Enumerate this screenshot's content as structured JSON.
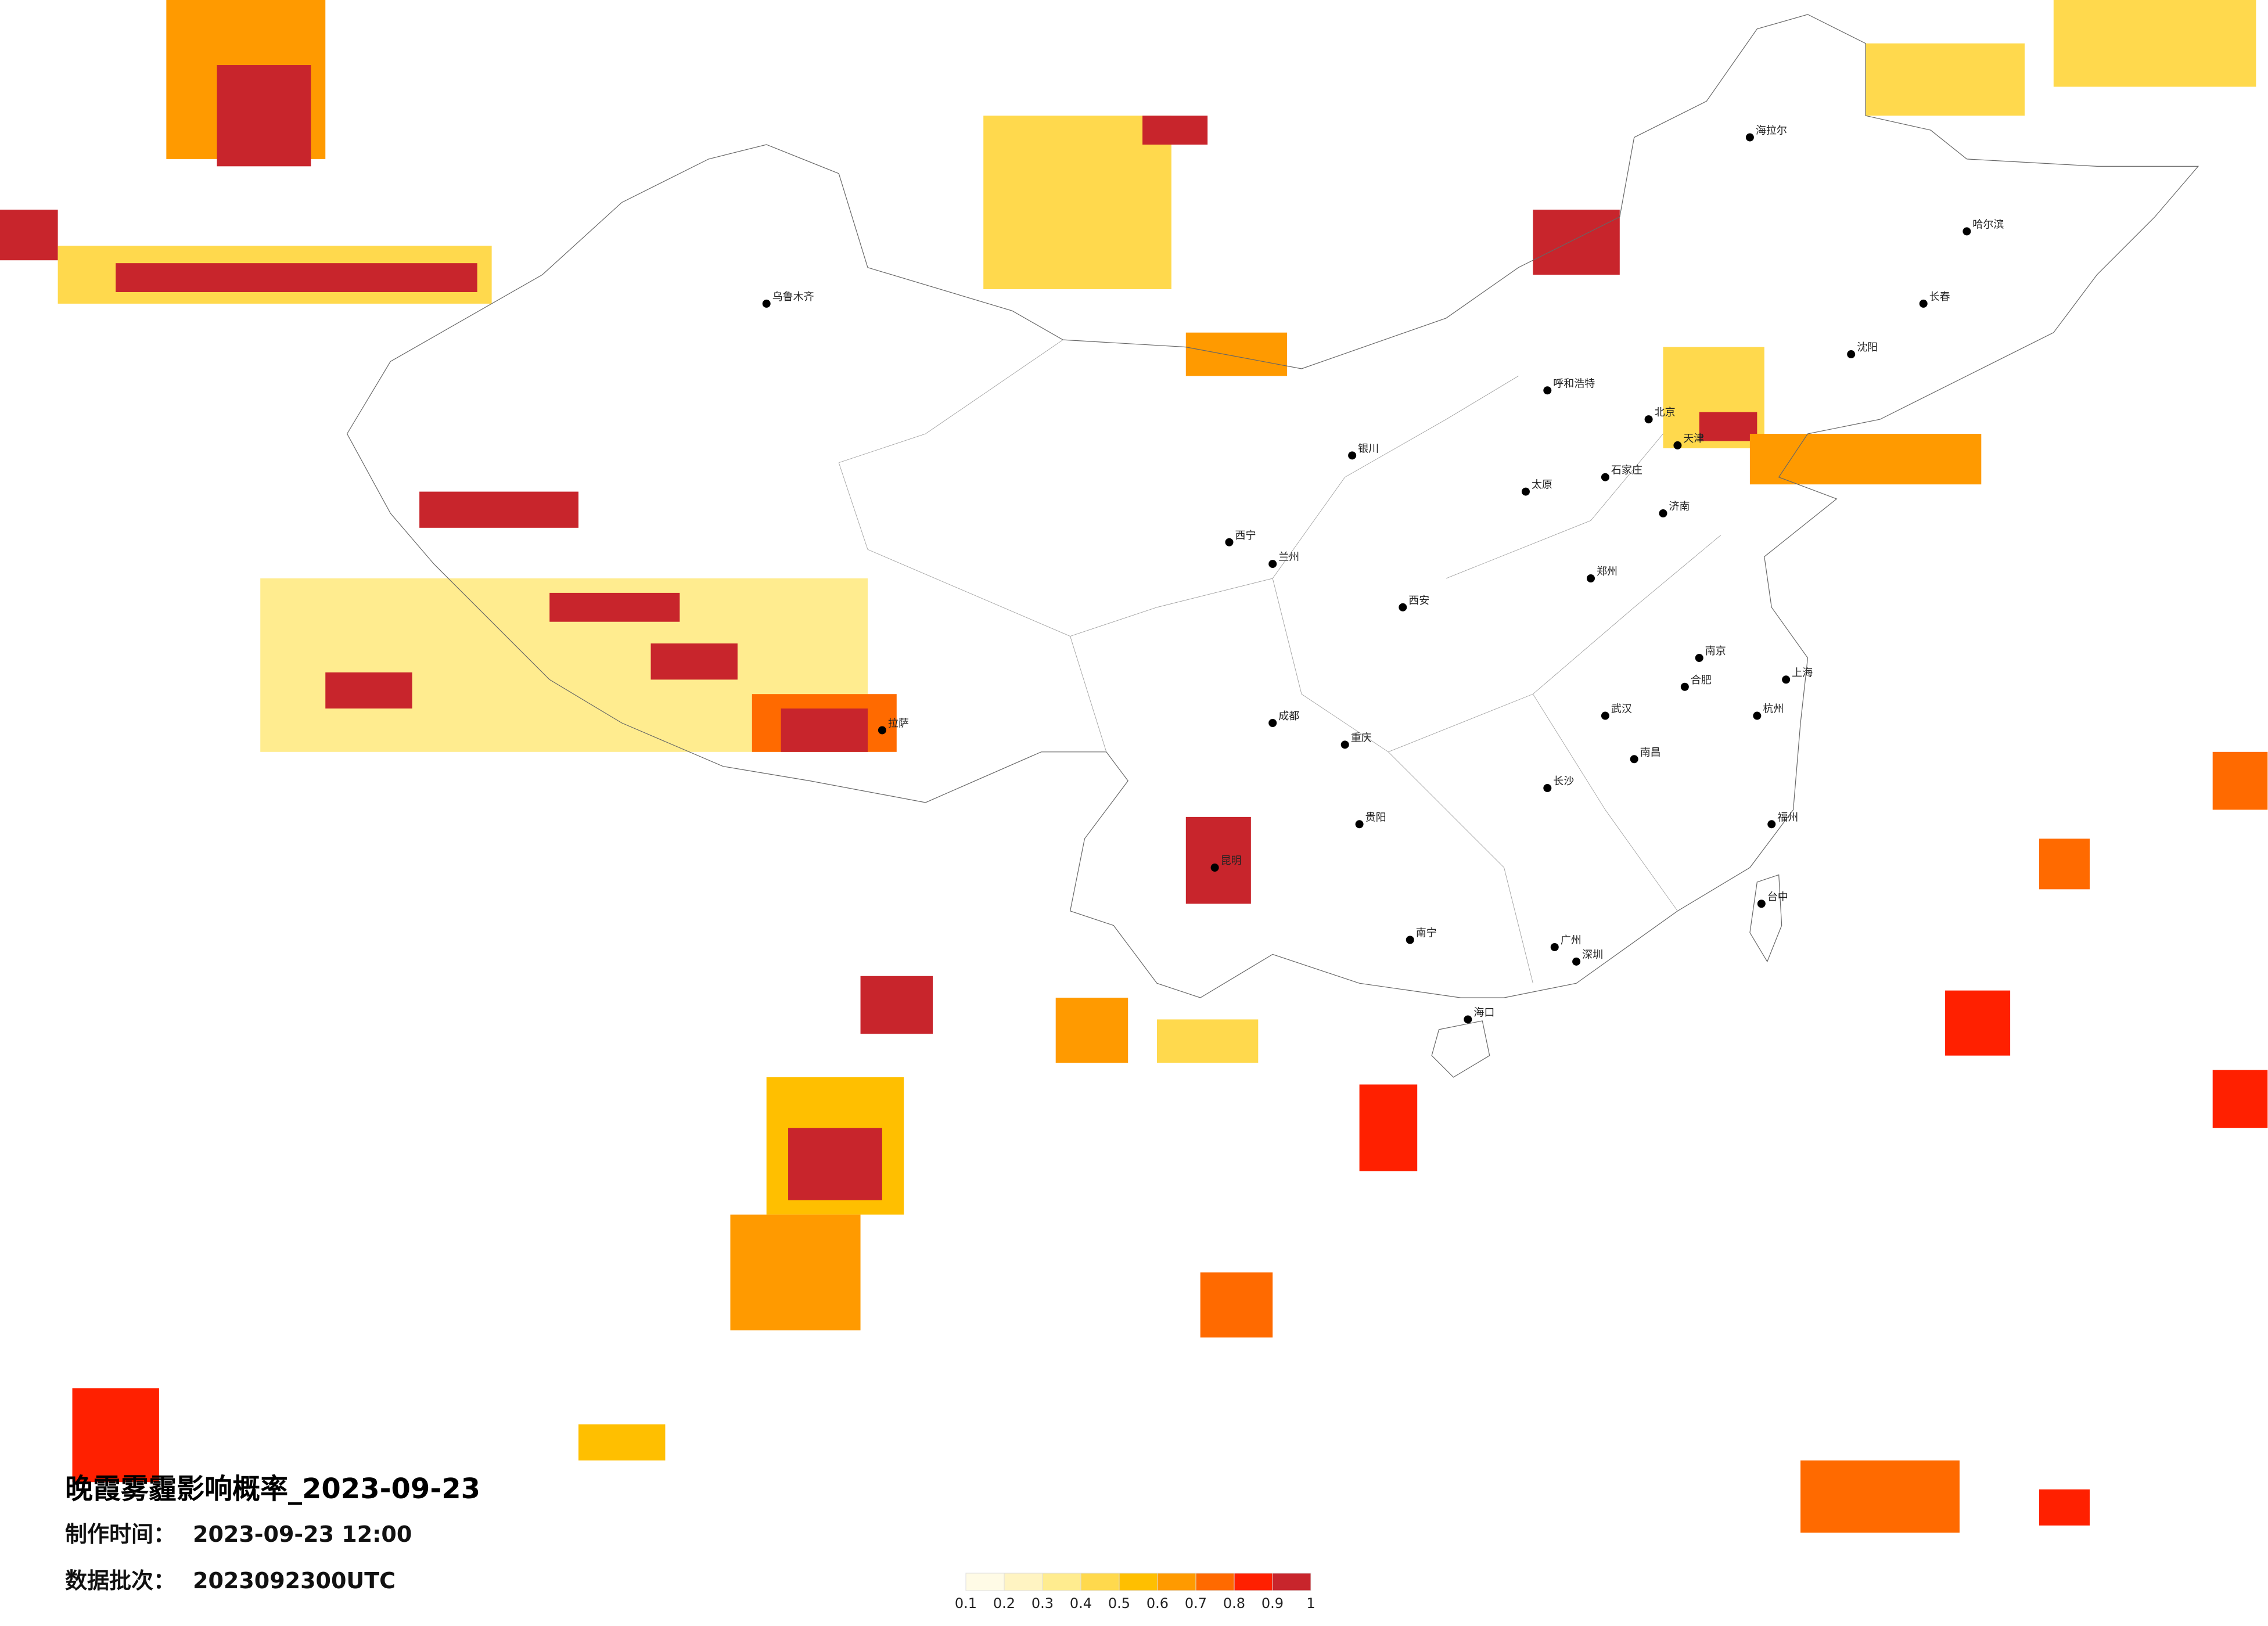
{
  "map": {
    "title": "晚霞雾霾影响概率_2023-09-23",
    "made_time_label": "制作时间：",
    "made_time": "2023-09-23 12:00",
    "batch_label": "数据批次：",
    "batch": "2023092300UTC",
    "cities": [
      "北京",
      "天津",
      "上海",
      "广州",
      "深圳",
      "武汉",
      "成都",
      "重庆",
      "西安",
      "兰州",
      "昆明",
      "拉萨",
      "乌鲁木齐",
      "呼和浩特",
      "哈尔滨",
      "长春",
      "沈阳",
      "郑州",
      "长沙",
      "南昌",
      "福州",
      "南宁",
      "贵阳",
      "海口",
      "杭州",
      "南京",
      "济南",
      "太原",
      "石家庄",
      "银川",
      "西宁",
      "合肥",
      "海拉尔",
      "台中"
    ]
  },
  "legend": {
    "colors": [
      "#fffbe6",
      "#fff4c2",
      "#ffec8f",
      "#ffd94d",
      "#ffbf00",
      "#ff9a00",
      "#ff6a00",
      "#ff2000",
      "#c8252c"
    ],
    "ticks": [
      0.1,
      0.2,
      0.3,
      0.4,
      0.5,
      0.6,
      0.7,
      0.8,
      0.9,
      1
    ]
  }
}
